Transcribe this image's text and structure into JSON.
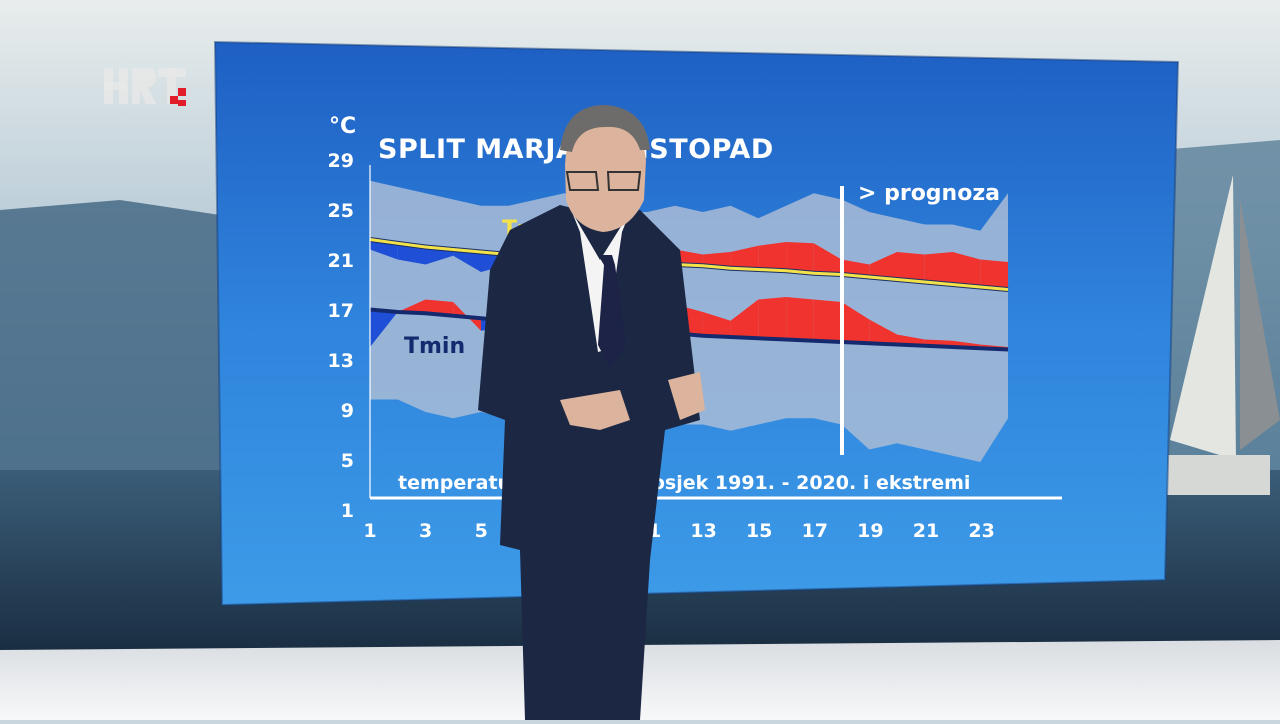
{
  "broadcaster": {
    "logo_text": "HRT"
  },
  "screen": {
    "title": "SPLIT MARJAN, LISTOPAD",
    "unit": "°C",
    "forecast_label": "> prognoza",
    "subtitle": "temperatura 1. - 24., prosjek 1991. - 2020. i ekstremi"
  },
  "chart_data": {
    "type": "area",
    "title": "SPLIT MARJAN, LISTOPAD",
    "ylabel": "°C",
    "y_ticks": [
      "29",
      "25",
      "21",
      "17",
      "13",
      "9",
      "5",
      "1"
    ],
    "x_ticks": [
      "1",
      "3",
      "5",
      "7",
      "9",
      "11",
      "13",
      "15",
      "17",
      "19",
      "21",
      "23"
    ],
    "ylim": [
      1,
      29
    ],
    "xlim": [
      1,
      24
    ],
    "forecast_from_day": 18,
    "series_labels": {
      "tmax": "Tmax",
      "tmin": "Tmin"
    },
    "days": [
      1,
      2,
      3,
      4,
      5,
      6,
      7,
      8,
      9,
      10,
      11,
      12,
      13,
      14,
      15,
      16,
      17,
      18,
      19,
      20,
      21,
      22,
      23,
      24
    ],
    "extreme_max": [
      27.5,
      27.0,
      26.5,
      26.0,
      25.5,
      25.5,
      26.0,
      26.5,
      26.0,
      25.0,
      25.0,
      25.5,
      25.0,
      25.5,
      24.5,
      25.5,
      26.5,
      26.0,
      25.0,
      24.5,
      24.0,
      24.0,
      23.5,
      26.5
    ],
    "extreme_min": [
      10.0,
      10.0,
      9.0,
      8.5,
      9.0,
      8.5,
      8.0,
      8.0,
      8.0,
      8.5,
      8.0,
      8.0,
      8.0,
      7.5,
      8.0,
      8.5,
      8.5,
      8.0,
      6.0,
      6.5,
      6.0,
      5.5,
      5.0,
      8.5
    ],
    "avg_tmax": [
      22.8,
      22.5,
      22.2,
      22.0,
      21.8,
      21.6,
      21.4,
      21.3,
      21.2,
      21.0,
      20.9,
      20.8,
      20.7,
      20.5,
      20.4,
      20.3,
      20.1,
      20.0,
      19.8,
      19.6,
      19.4,
      19.2,
      19.0,
      18.8
    ],
    "avg_tmin": [
      17.2,
      17.0,
      16.9,
      16.7,
      16.5,
      16.3,
      16.1,
      16.0,
      15.8,
      15.6,
      15.4,
      15.3,
      15.1,
      15.0,
      14.9,
      14.8,
      14.7,
      14.6,
      14.5,
      14.4,
      14.3,
      14.2,
      14.1,
      14.0
    ],
    "tmax": [
      22.0,
      21.2,
      20.8,
      21.5,
      20.2,
      20.8,
      21.6,
      22.2,
      22.0,
      22.5,
      22.4,
      22.0,
      21.6,
      21.8,
      22.3,
      22.6,
      22.5,
      21.2,
      20.8,
      21.8,
      21.6,
      21.8,
      21.2,
      21.0
    ],
    "tmin": [
      14.2,
      17.0,
      18.0,
      17.8,
      15.5,
      15.8,
      16.5,
      16.0,
      14.6,
      16.8,
      16.4,
      17.6,
      17.0,
      16.3,
      18.0,
      18.2,
      18.0,
      17.8,
      16.4,
      15.2,
      14.8,
      14.7,
      14.4,
      14.2
    ],
    "colors": {
      "extreme_band": "#a9bcd6",
      "warm_anomaly": "#f0332e",
      "cold_anomaly": "#1e4fd6",
      "avg_tmax_line": "#f3e24a",
      "avg_tmin_line": "#152a6e"
    }
  }
}
